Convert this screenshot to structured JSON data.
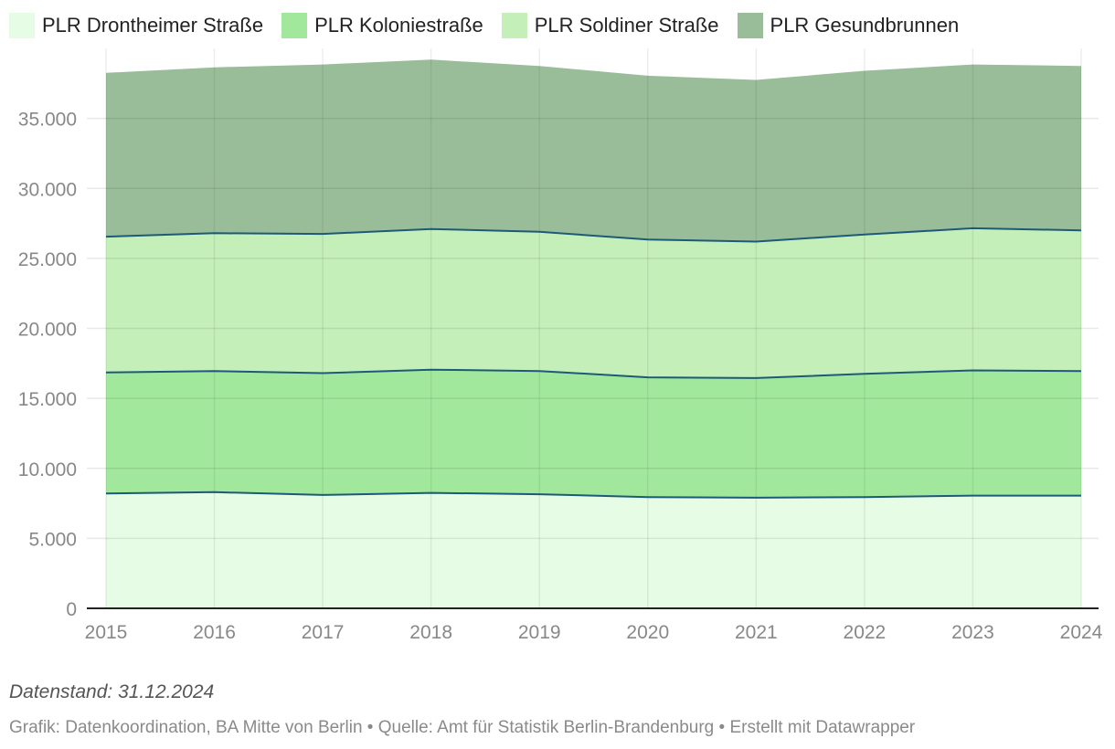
{
  "chart_data": {
    "type": "area",
    "stacked": true,
    "x": [
      "2015",
      "2016",
      "2017",
      "2018",
      "2019",
      "2020",
      "2021",
      "2022",
      "2023",
      "2024"
    ],
    "series": [
      {
        "name": "PLR Drontheimer Straße",
        "color": "#e6fce4",
        "values": [
          8200,
          8300,
          8100,
          8250,
          8150,
          7950,
          7900,
          7950,
          8050,
          8050
        ]
      },
      {
        "name": "PLR Koloniestraße",
        "color": "#a2e89c",
        "values": [
          8650,
          8650,
          8700,
          8800,
          8800,
          8550,
          8550,
          8800,
          8950,
          8900
        ]
      },
      {
        "name": "PLR Soldiner Straße",
        "color": "#c4efb9",
        "values": [
          9700,
          9850,
          9950,
          10050,
          9950,
          9850,
          9750,
          9950,
          10150,
          10050
        ]
      },
      {
        "name": "PLR Gesundbrunnen",
        "color": "#9abd99",
        "values": [
          11700,
          11850,
          12100,
          12100,
          11850,
          11700,
          11550,
          11700,
          11700,
          11750
        ]
      }
    ],
    "ylim": [
      0,
      40000
    ],
    "yticks": [
      {
        "value": 0,
        "label": "0"
      },
      {
        "value": 5000,
        "label": "5.000"
      },
      {
        "value": 10000,
        "label": "10.000"
      },
      {
        "value": 15000,
        "label": "15.000"
      },
      {
        "value": 20000,
        "label": "20.000"
      },
      {
        "value": 25000,
        "label": "25.000"
      },
      {
        "value": 30000,
        "label": "30.000"
      },
      {
        "value": 35000,
        "label": "35.000"
      }
    ],
    "boundary_line_color": "#1d5a78",
    "grid": true,
    "legend_position": "top-left"
  },
  "footer": {
    "note": "Datenstand: 31.12.2024",
    "credit": "Grafik: Datenkoordination, BA Mitte von Berlin • Quelle: Amt für Statistik Berlin-Brandenburg • Erstellt mit Datawrapper"
  }
}
